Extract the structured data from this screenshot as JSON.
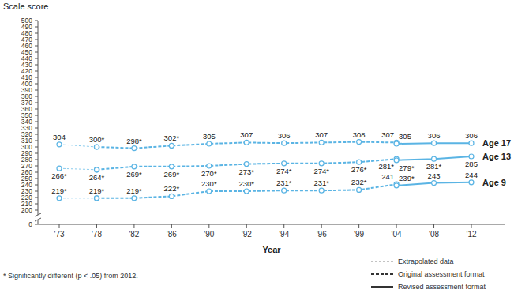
{
  "chart_data": {
    "type": "line",
    "y_label": "Scale score",
    "x_label": "Year",
    "annotations": [
      "* Significantly different (p < .05) from 2012."
    ],
    "categories": [
      "'73",
      "'78",
      "'82",
      "'86",
      "'90",
      "'92",
      "'94",
      "'96",
      "'99",
      "'04",
      "'08",
      "'12"
    ],
    "ylim": [
      0,
      500
    ],
    "yticks": [
      0,
      200,
      210,
      220,
      230,
      240,
      250,
      260,
      270,
      280,
      290,
      300,
      310,
      320,
      330,
      340,
      350,
      360,
      370,
      380,
      390,
      400,
      410,
      420,
      430,
      440,
      450,
      460,
      470,
      480,
      490,
      500
    ],
    "ybreak": [
      0,
      200
    ],
    "grid": false,
    "legend": "bottom-right",
    "data_labels": true,
    "marker": "circle",
    "color": "#5ab4e4",
    "series": [
      {
        "name": "Extrapolated data",
        "line_style": "thin-dashed",
        "values": [
          304,
          300,
          null,
          null,
          null,
          null,
          null,
          null,
          null,
          null,
          null,
          null
        ],
        "value_labels": [
          "304",
          null,
          null,
          null,
          null,
          null,
          null,
          null,
          null,
          null,
          null,
          null
        ]
      },
      {
        "name": "Original assessment format",
        "line_style": "dashed",
        "values": [
          null,
          300,
          298,
          302,
          305,
          307,
          306,
          307,
          308,
          307,
          null,
          null
        ],
        "value_labels": [
          null,
          "300*",
          "298*",
          "302*",
          "305",
          "307",
          "306",
          "307",
          "308",
          "307",
          null,
          null
        ]
      },
      {
        "name": "Revised assessment format",
        "line_style": "solid",
        "label": "Age 17",
        "values": [
          null,
          null,
          null,
          null,
          null,
          null,
          null,
          null,
          null,
          305,
          306,
          306
        ],
        "value_labels": [
          null,
          null,
          null,
          null,
          null,
          null,
          null,
          null,
          null,
          "305",
          "306",
          "306"
        ]
      },
      {
        "name": "Extrapolated data",
        "line_style": "thin-dashed",
        "values": [
          266,
          264,
          null,
          null,
          null,
          null,
          null,
          null,
          null,
          null,
          null,
          null
        ],
        "value_labels": [
          "266*",
          null,
          null,
          null,
          null,
          null,
          null,
          null,
          null,
          null,
          null,
          null
        ]
      },
      {
        "name": "Original assessment format",
        "line_style": "dashed",
        "values": [
          null,
          264,
          269,
          269,
          270,
          273,
          274,
          274,
          276,
          281,
          null,
          null
        ],
        "value_labels": [
          null,
          "264*",
          "269*",
          "269*",
          "270*",
          "273*",
          "274*",
          "274*",
          "276*",
          "281*",
          null,
          null
        ]
      },
      {
        "name": "Revised assessment format",
        "line_style": "solid",
        "label": "Age 13",
        "values": [
          null,
          null,
          null,
          null,
          null,
          null,
          null,
          null,
          null,
          279,
          281,
          285
        ],
        "value_labels": [
          null,
          null,
          null,
          null,
          null,
          null,
          null,
          null,
          null,
          "279*",
          "281*",
          "285"
        ]
      },
      {
        "name": "Extrapolated data",
        "line_style": "thin-dashed",
        "values": [
          219,
          219,
          null,
          null,
          null,
          null,
          null,
          null,
          null,
          null,
          null,
          null
        ],
        "value_labels": [
          "219*",
          null,
          null,
          null,
          null,
          null,
          null,
          null,
          null,
          null,
          null,
          null
        ]
      },
      {
        "name": "Original assessment format",
        "line_style": "dashed",
        "values": [
          null,
          219,
          219,
          222,
          230,
          230,
          231,
          231,
          232,
          241,
          null,
          null
        ],
        "value_labels": [
          null,
          "219*",
          "219*",
          "222*",
          "230*",
          "230*",
          "231*",
          "231*",
          "232*",
          "241",
          null,
          null
        ]
      },
      {
        "name": "Revised assessment format",
        "line_style": "solid",
        "label": "Age 9",
        "values": [
          null,
          null,
          null,
          null,
          null,
          null,
          null,
          null,
          null,
          239,
          243,
          244
        ],
        "value_labels": [
          null,
          null,
          null,
          null,
          null,
          null,
          null,
          null,
          null,
          "239*",
          "243",
          "244"
        ]
      }
    ]
  }
}
